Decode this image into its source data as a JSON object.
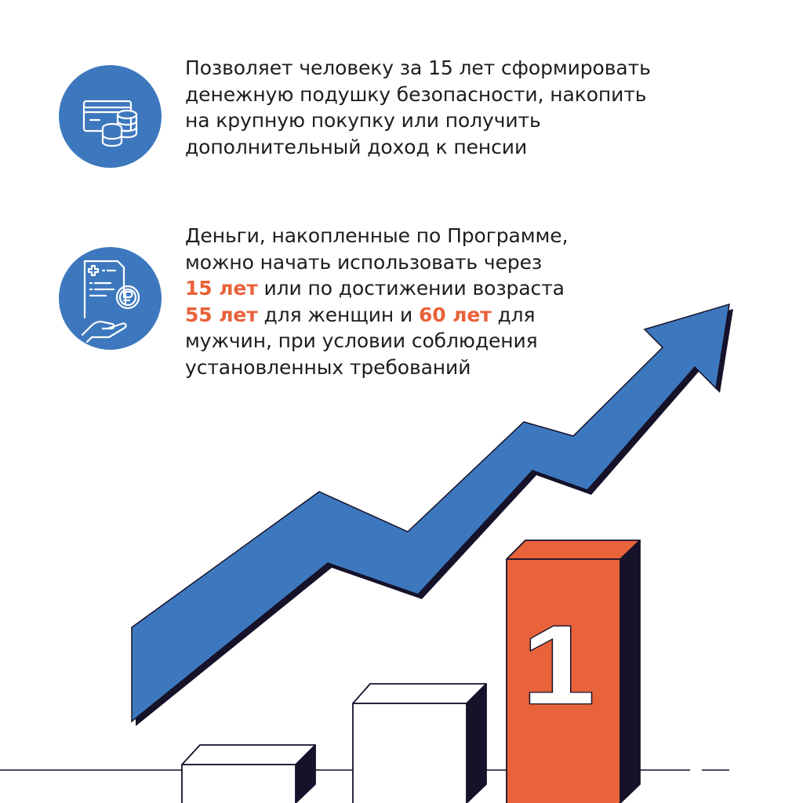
{
  "colors": {
    "accent_blue": "#3d78be",
    "accent_orange": "#e8623a",
    "dark": "#15122a",
    "text": "#1d1d1f"
  },
  "items": [
    {
      "icon": "card-and-coins-icon",
      "lines": [
        "Позволяет человеку за 15 лет сформировать",
        "денежную подушку безопасности, накопить",
        "на крупную покупку или получить",
        "дополнительный доход к пенсии"
      ]
    },
    {
      "icon": "document-ruble-hand-icon",
      "line1": "Деньги, накопленные по Программе,",
      "line2": "можно начать использовать через",
      "line3_hl": "15 лет",
      "line3_rest": " или по достижении возраста",
      "line4_hl1": "55 лет",
      "line4_mid": " для женщин и ",
      "line4_hl2": "60 лет",
      "line4_rest": " для",
      "line5": "мужчин, при условии соблюдения",
      "line6": "установленных требований"
    }
  ],
  "illustration": {
    "bar_label": "1",
    "arrow_icon": "growth-arrow-icon"
  }
}
